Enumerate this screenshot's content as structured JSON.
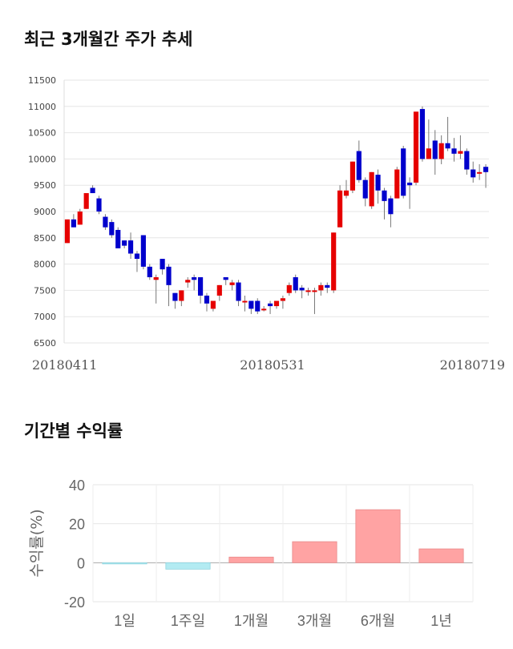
{
  "sections": {
    "price_title": "최근 3개월간 주가 추세",
    "return_title": "기간별 수익률"
  },
  "colors": {
    "up": "#e60000",
    "down": "#0000cc",
    "pos_bar": "#ffa3a3",
    "neg_bar": "#b3ebf2"
  },
  "chart_data": [
    {
      "type": "candlestick",
      "ylim": [
        6500,
        11500
      ],
      "yticks": [
        6500,
        7000,
        7500,
        8000,
        8500,
        9000,
        9500,
        10000,
        10500,
        11000,
        11500
      ],
      "x_labels": [
        "20180411",
        "20180531",
        "20180719"
      ],
      "candles": [
        [
          8400,
          8850,
          8400,
          8850
        ],
        [
          8850,
          8700,
          8950,
          8700
        ],
        [
          8750,
          9000,
          8750,
          9050
        ],
        [
          9050,
          9350,
          9050,
          9350
        ],
        [
          9450,
          9350,
          9500,
          9350
        ],
        [
          9250,
          9000,
          9300,
          8950
        ],
        [
          8900,
          8700,
          8950,
          8650
        ],
        [
          8800,
          8550,
          8850,
          8500
        ],
        [
          8650,
          8300,
          8700,
          8300
        ],
        [
          8450,
          8350,
          8450,
          8300
        ],
        [
          8450,
          8200,
          8600,
          8100
        ],
        [
          8200,
          8100,
          8250,
          7850
        ],
        [
          8550,
          7950,
          8550,
          7900
        ],
        [
          7950,
          7750,
          8000,
          7700
        ],
        [
          7700,
          7750,
          7800,
          7250
        ],
        [
          8100,
          7900,
          8100,
          7800
        ],
        [
          7950,
          7600,
          8000,
          7200
        ],
        [
          7450,
          7300,
          7450,
          7150
        ],
        [
          7300,
          7500,
          7500,
          7200
        ],
        [
          7650,
          7700,
          7750,
          7550
        ],
        [
          7750,
          7700,
          7800,
          7500
        ],
        [
          7750,
          7400,
          7750,
          7250
        ],
        [
          7400,
          7250,
          7450,
          7100
        ],
        [
          7150,
          7300,
          7300,
          7100
        ],
        [
          7400,
          7600,
          7600,
          7300
        ],
        [
          7750,
          7700,
          7750,
          7600
        ],
        [
          7600,
          7650,
          7700,
          7500
        ],
        [
          7650,
          7300,
          7700,
          7200
        ],
        [
          7300,
          7300,
          7400,
          7100
        ],
        [
          7300,
          7150,
          7300,
          7050
        ],
        [
          7300,
          7100,
          7350,
          7050
        ],
        [
          7150,
          7150,
          7200,
          7100
        ],
        [
          7250,
          7200,
          7300,
          7050
        ],
        [
          7200,
          7300,
          7300,
          7150
        ],
        [
          7300,
          7350,
          7400,
          7150
        ],
        [
          7450,
          7600,
          7650,
          7400
        ],
        [
          7750,
          7500,
          7800,
          7450
        ],
        [
          7550,
          7500,
          7600,
          7350
        ],
        [
          7500,
          7500,
          7550,
          7400
        ],
        [
          7500,
          7500,
          7550,
          7050
        ],
        [
          7500,
          7600,
          7650,
          7400
        ],
        [
          7600,
          7550,
          7650,
          7450
        ],
        [
          7500,
          8600,
          8600,
          7450
        ],
        [
          8700,
          9400,
          9500,
          8700
        ],
        [
          9300,
          9400,
          9600,
          9250
        ],
        [
          9400,
          9950,
          9950,
          9350
        ],
        [
          10150,
          9600,
          10350,
          9550
        ],
        [
          9600,
          9250,
          9650,
          9100
        ],
        [
          9100,
          9750,
          9750,
          9050
        ],
        [
          9700,
          9400,
          9800,
          9150
        ],
        [
          9400,
          9200,
          9450,
          8850
        ],
        [
          9250,
          8950,
          9300,
          8700
        ],
        [
          9250,
          9800,
          9850,
          9250
        ],
        [
          10200,
          9300,
          10250,
          9250
        ],
        [
          9550,
          9500,
          9650,
          9050
        ],
        [
          9550,
          10900,
          10900,
          9500
        ],
        [
          10950,
          10000,
          11000,
          9950
        ],
        [
          10000,
          10200,
          10750,
          10000
        ],
        [
          10350,
          10000,
          10550,
          9700
        ],
        [
          10000,
          10300,
          10450,
          9900
        ],
        [
          10300,
          10200,
          10800,
          10150
        ],
        [
          10200,
          10100,
          10400,
          9950
        ],
        [
          10100,
          10150,
          10450,
          10000
        ],
        [
          10150,
          9800,
          10200,
          9700
        ],
        [
          9800,
          9650,
          9950,
          9550
        ],
        [
          9750,
          9750,
          9900,
          9600
        ],
        [
          9850,
          9750,
          9900,
          9450
        ]
      ]
    },
    {
      "type": "bar",
      "categories": [
        "1일",
        "1주일",
        "1개월",
        "3개월",
        "6개월",
        "1년"
      ],
      "values": [
        -0.4,
        -3.3,
        2.9,
        10.8,
        27.2,
        7.1
      ],
      "ylabel": "수익률(%)",
      "ylim": [
        -20,
        40
      ],
      "yticks": [
        -20,
        0,
        20,
        40
      ]
    }
  ]
}
